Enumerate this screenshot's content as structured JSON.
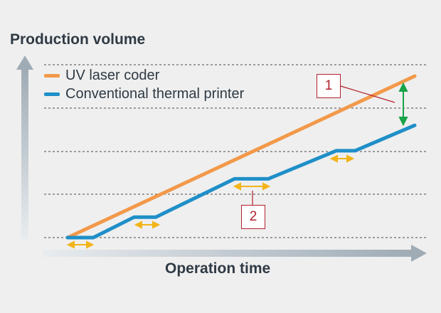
{
  "chart_data": {
    "type": "line",
    "y_axis_title": "Production volume",
    "x_axis_title": "Operation time",
    "grid": "horizontal dashed",
    "legend_position": "top-left",
    "series": [
      {
        "name": "UV laser coder",
        "color": "#f2994a",
        "x": [
          0,
          1
        ],
        "y": [
          0,
          1
        ]
      },
      {
        "name": "Conventional thermal printer",
        "color": "#1f8fc8",
        "x": [
          0,
          0.074,
          0.192,
          0.254,
          0.481,
          0.578,
          0.774,
          0.828,
          1
        ],
        "y": [
          0,
          0,
          0.127,
          0.127,
          0.364,
          0.364,
          0.538,
          0.538,
          0.695
        ]
      }
    ],
    "annotations": [
      {
        "label": "1",
        "meaning": "production gap between lines"
      },
      {
        "label": "2",
        "meaning": "stoppage period of thermal printer"
      }
    ],
    "colors": {
      "gap_arrow": "#19a34a",
      "pause_arrow": "#f2b418",
      "axis_arrow": "#a8b3bc",
      "callout_border": "#b3202e"
    }
  }
}
